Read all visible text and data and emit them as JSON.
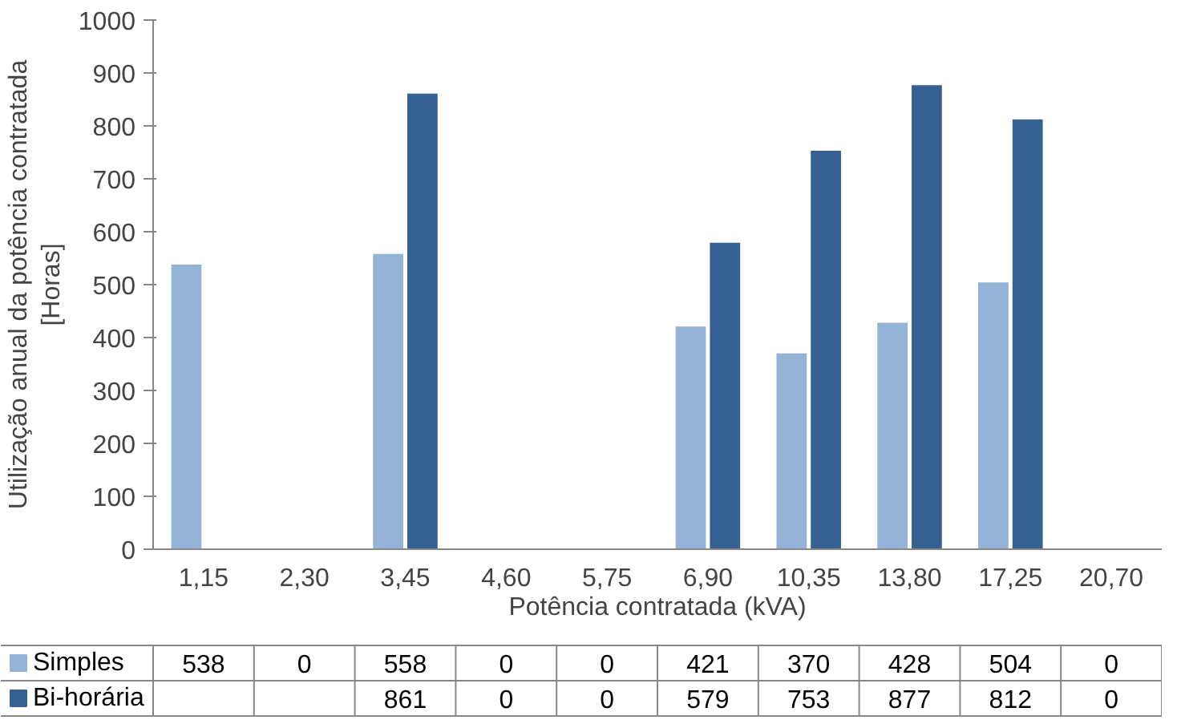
{
  "chart_data": {
    "type": "bar",
    "xlabel": "Potência contratada (kVA)",
    "ylabel": "Utilização anual da potência contratada [Horas]",
    "categories": [
      "1,15",
      "2,30",
      "3,45",
      "4,60",
      "5,75",
      "6,90",
      "10,35",
      "13,80",
      "17,25",
      "20,70"
    ],
    "series": [
      {
        "name": "Simples",
        "color": "#95b3d7",
        "values": [
          538,
          0,
          558,
          0,
          0,
          421,
          370,
          428,
          504,
          0
        ]
      },
      {
        "name": "Bi-horária",
        "color": "#376092",
        "values": [
          null,
          null,
          861,
          0,
          0,
          579,
          753,
          877,
          812,
          0
        ]
      }
    ],
    "ylim": [
      0,
      1000
    ],
    "yticks": [
      0,
      100,
      200,
      300,
      400,
      500,
      600,
      700,
      800,
      900,
      1000
    ],
    "grid": false,
    "legend": "bottom",
    "data_labels": true
  }
}
